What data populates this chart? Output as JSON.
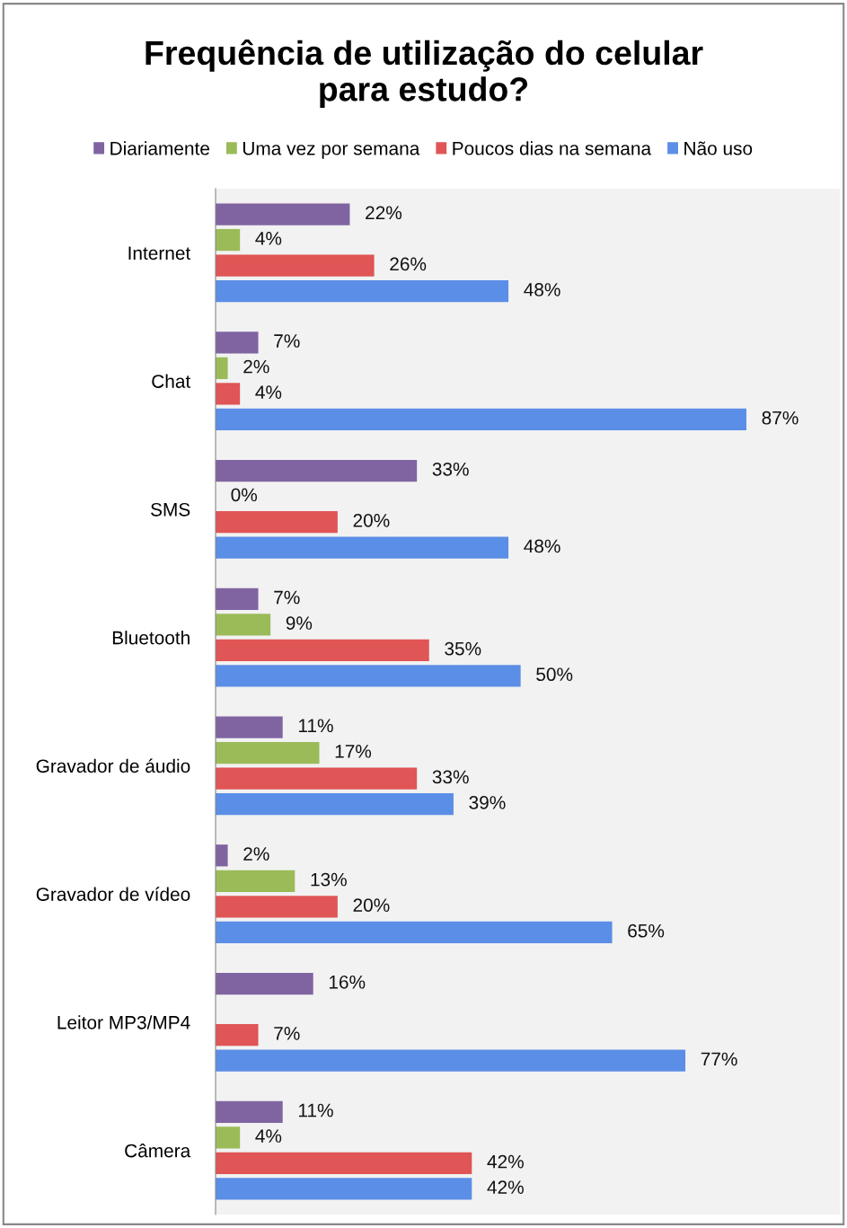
{
  "chart_data": {
    "type": "bar",
    "orientation": "horizontal",
    "title": "Frequência de utilização do celular\npara estudo?",
    "categories": [
      "Internet",
      "Chat",
      "SMS",
      "Bluetooth",
      "Gravador de áudio",
      "Gravador de vídeo",
      "Leitor MP3/MP4",
      "Câmera"
    ],
    "series": [
      {
        "name": "Diariamente",
        "color": "#8064a2",
        "values": [
          22,
          7,
          33,
          7,
          11,
          2,
          16,
          11
        ],
        "value_labels": [
          "22%",
          "7%",
          "33%",
          "7%",
          "11%",
          "2%",
          "16%",
          "11%"
        ]
      },
      {
        "name": "Uma vez por semana",
        "color": "#9bbb59",
        "values": [
          4,
          2,
          0,
          9,
          17,
          13,
          null,
          4
        ],
        "value_labels": [
          "4%",
          "2%",
          "0%",
          "9%",
          "17%",
          "13%",
          null,
          "4%"
        ]
      },
      {
        "name": "Poucos dias na semana",
        "color": "#e05555",
        "values": [
          26,
          4,
          20,
          35,
          33,
          20,
          7,
          42
        ],
        "value_labels": [
          "26%",
          "4%",
          "20%",
          "35%",
          "33%",
          "20%",
          "7%",
          "42%"
        ]
      },
      {
        "name": "Não uso",
        "color": "#5b8ee6",
        "values": [
          48,
          87,
          48,
          50,
          39,
          65,
          77,
          42
        ],
        "value_labels": [
          "48%",
          "87%",
          "48%",
          "50%",
          "39%",
          "65%",
          "77%",
          "42%"
        ]
      }
    ],
    "legend": "top",
    "grid": false,
    "tick_labels": "y"
  }
}
